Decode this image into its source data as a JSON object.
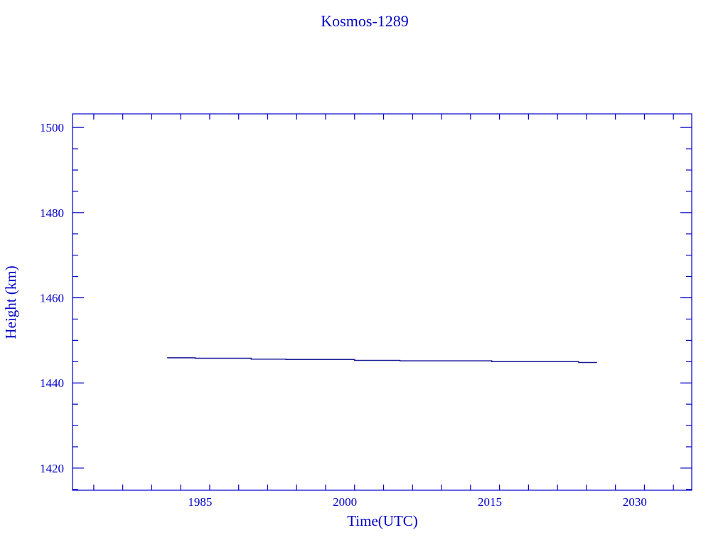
{
  "chart_data": {
    "type": "line",
    "title": "Kosmos-1289",
    "xlabel": "Time(UTC)",
    "ylabel": "Height (km)",
    "xlim": [
      1971.8,
      2035.9
    ],
    "ylim": [
      1414.8,
      1503.2
    ],
    "x_ticks": [
      1985,
      2000,
      2015,
      2030
    ],
    "x_minor_step": 3,
    "y_ticks": [
      1420,
      1440,
      1460,
      1480,
      1500
    ],
    "y_minor_step": 5,
    "grid": false,
    "colors": {
      "axes": "#0000c8",
      "line": "#1a1a96"
    },
    "series": [
      {
        "style": "step",
        "x": [
          1981.6,
          1984.5,
          1990.3,
          1993.9,
          2001.0,
          2005.7,
          2015.2,
          2024.2,
          2026.1
        ],
        "y": [
          1445.9,
          1445.8,
          1445.6,
          1445.5,
          1445.3,
          1445.2,
          1445.0,
          1444.8,
          1444.8
        ]
      }
    ]
  }
}
